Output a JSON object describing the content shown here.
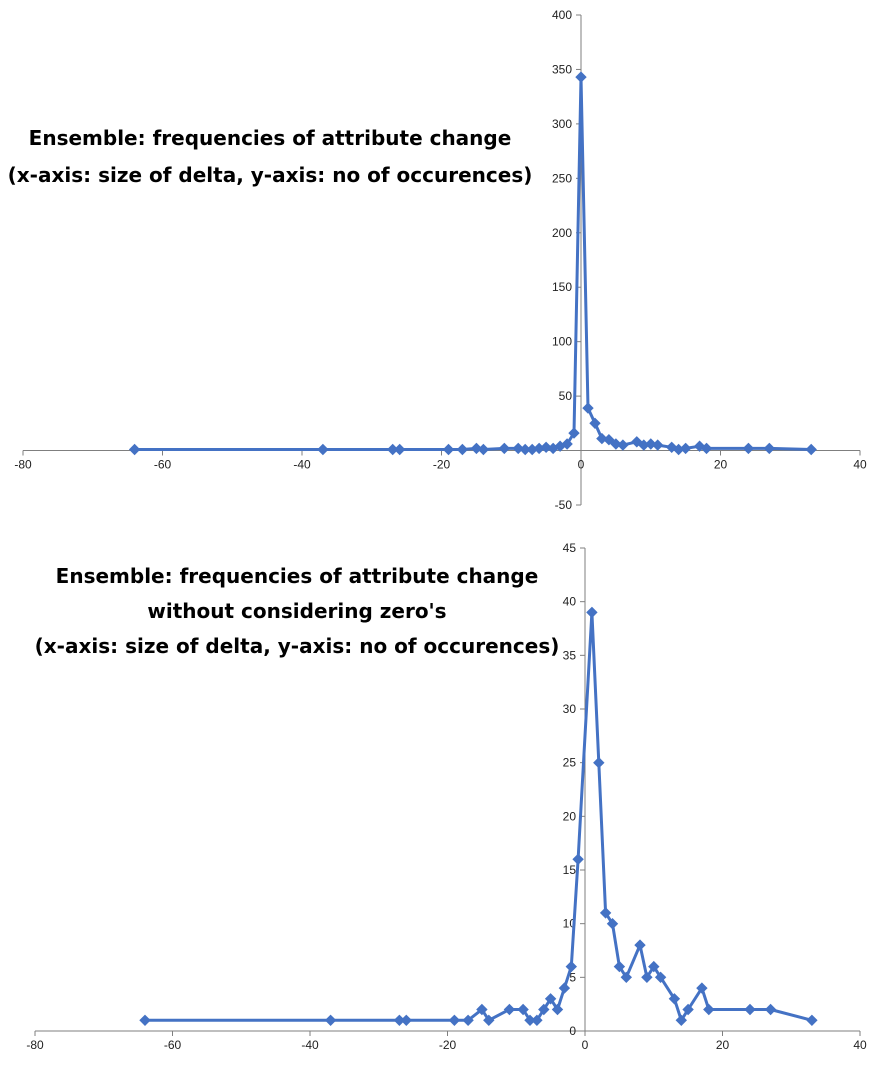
{
  "chart_data": [
    {
      "type": "scatter",
      "title_lines": [
        "Ensemble: frequencies of attribute change",
        "(x-axis: size of delta, y-axis: no of occurences)"
      ],
      "xlim": [
        -80,
        40
      ],
      "ylim": [
        -50,
        400
      ],
      "x_ticks": [
        -80,
        -60,
        -40,
        -20,
        0,
        20,
        40
      ],
      "y_ticks": [
        -50,
        50,
        100,
        150,
        200,
        250,
        300,
        350,
        400
      ],
      "grid": false,
      "marker_color": "#4472C4",
      "series": [
        {
          "x": [
            -64,
            -37,
            -27,
            -26,
            -19,
            -17,
            -15,
            -14,
            -11,
            -9,
            -8,
            -7,
            -6,
            -5,
            -4,
            -3,
            -2,
            -1,
            0,
            1,
            2,
            3,
            4,
            5,
            6,
            8,
            9,
            10,
            11,
            13,
            14,
            15,
            17,
            18,
            24,
            27,
            33
          ],
          "y": [
            1,
            1,
            1,
            1,
            1,
            1,
            2,
            1,
            2,
            2,
            1,
            1,
            2,
            3,
            2,
            4,
            6,
            16,
            343,
            39,
            25,
            11,
            10,
            6,
            5,
            8,
            5,
            6,
            5,
            3,
            1,
            2,
            4,
            2,
            2,
            2,
            1
          ]
        }
      ]
    },
    {
      "type": "scatter",
      "title_lines": [
        "Ensemble: frequencies of attribute change",
        "without considering zero's",
        "(x-axis: size of delta, y-axis: no of occurences)"
      ],
      "xlim": [
        -80,
        40
      ],
      "ylim": [
        0,
        45
      ],
      "x_ticks": [
        -80,
        -60,
        -40,
        -20,
        0,
        20,
        40
      ],
      "y_ticks": [
        0,
        5,
        10,
        15,
        20,
        25,
        30,
        35,
        40,
        45
      ],
      "grid": false,
      "marker_color": "#4472C4",
      "series": [
        {
          "x": [
            -64,
            -37,
            -27,
            -26,
            -19,
            -17,
            -15,
            -14,
            -11,
            -9,
            -8,
            -7,
            -6,
            -5,
            -4,
            -3,
            -2,
            -1,
            1,
            2,
            3,
            4,
            5,
            6,
            8,
            9,
            10,
            11,
            13,
            14,
            15,
            17,
            18,
            24,
            27,
            33
          ],
          "y": [
            1,
            1,
            1,
            1,
            1,
            1,
            2,
            1,
            2,
            2,
            1,
            1,
            2,
            3,
            2,
            4,
            6,
            16,
            39,
            25,
            11,
            10,
            6,
            5,
            8,
            5,
            6,
            5,
            3,
            1,
            2,
            4,
            2,
            2,
            2,
            1
          ]
        }
      ]
    }
  ]
}
